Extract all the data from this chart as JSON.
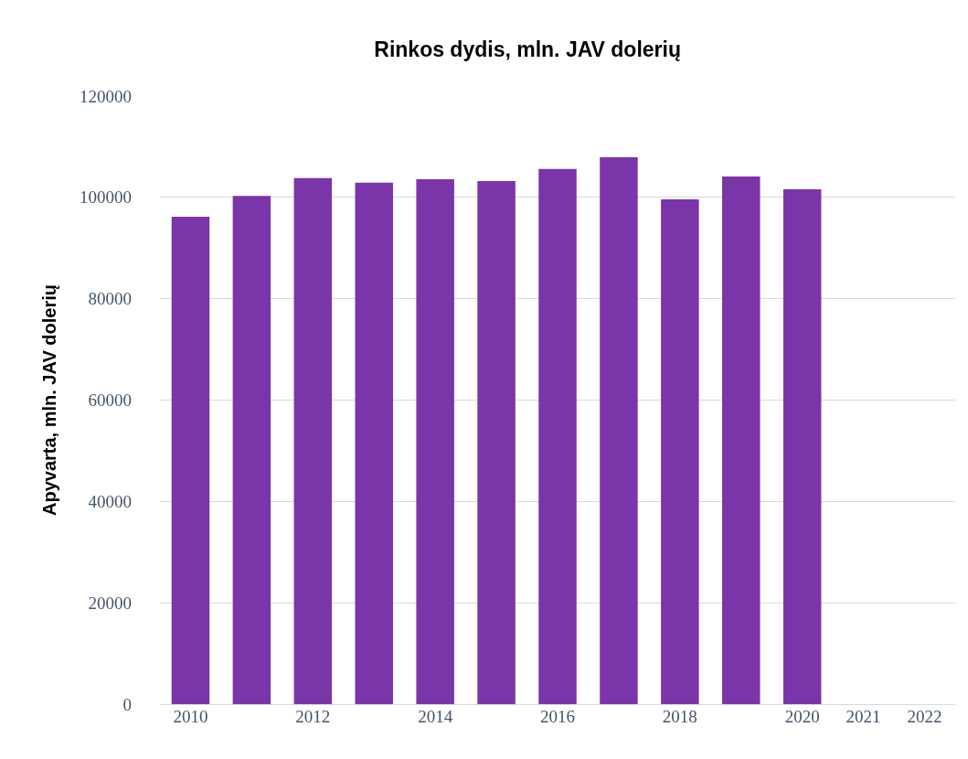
{
  "chart_data": {
    "type": "bar",
    "title": "Rinkos dydis, mln. JAV dolerių",
    "ylabel": "Apyvarta, mln. JAV dolerių",
    "categories": [
      "2010",
      null,
      "2012",
      null,
      "2014",
      null,
      "2016",
      null,
      "2018",
      null,
      "2020",
      "2021",
      "2022"
    ],
    "values": [
      96200,
      100300,
      103800,
      102900,
      103600,
      103200,
      105600,
      107900,
      99600,
      104100,
      101600,
      null,
      null
    ],
    "color": "#7a35a8",
    "ylim": [
      0,
      120000
    ],
    "yticks": [
      0,
      20000,
      40000,
      60000,
      80000,
      100000,
      120000
    ],
    "grid": "y",
    "legend": false
  }
}
